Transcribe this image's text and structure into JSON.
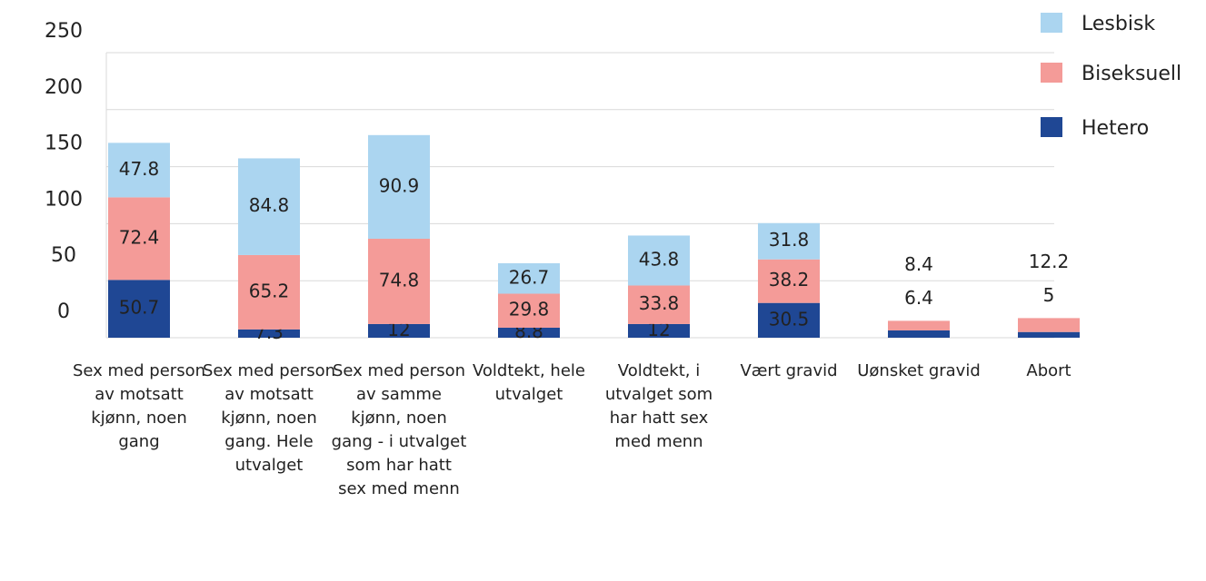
{
  "chart_data": {
    "type": "stacked_bar",
    "categories": [
      "Sex med person av motsatt kjønn, noen gang",
      "Sex med person av motsatt kjønn, noen gang. Hele utvalget",
      "Sex med person av samme kjønn, noen gang - i utvalget som har hatt sex med menn",
      "Voldtekt, hele utvalget",
      "Voldtekt, i utvalget som har hatt sex med menn",
      "Vært gravid",
      "Uønsket gravid",
      "Abort"
    ],
    "series": [
      {
        "name": "Hetero",
        "color": "#1f4794",
        "values": [
          50.7,
          7.3,
          12,
          8.8,
          12,
          30.5,
          6.4,
          5
        ]
      },
      {
        "name": "Biseksuell",
        "color": "#f49b98",
        "values": [
          72.4,
          65.2,
          74.8,
          29.8,
          33.8,
          38.2,
          8.4,
          12.2
        ]
      },
      {
        "name": "Lesbisk",
        "color": "#abd5f0",
        "values": [
          47.8,
          84.8,
          90.9,
          26.7,
          43.8,
          31.8,
          null,
          null
        ]
      }
    ],
    "ylim": [
      0,
      250
    ],
    "yticks": [
      0,
      50,
      100,
      150,
      200,
      250
    ],
    "grid": true,
    "legend": "top-right"
  }
}
